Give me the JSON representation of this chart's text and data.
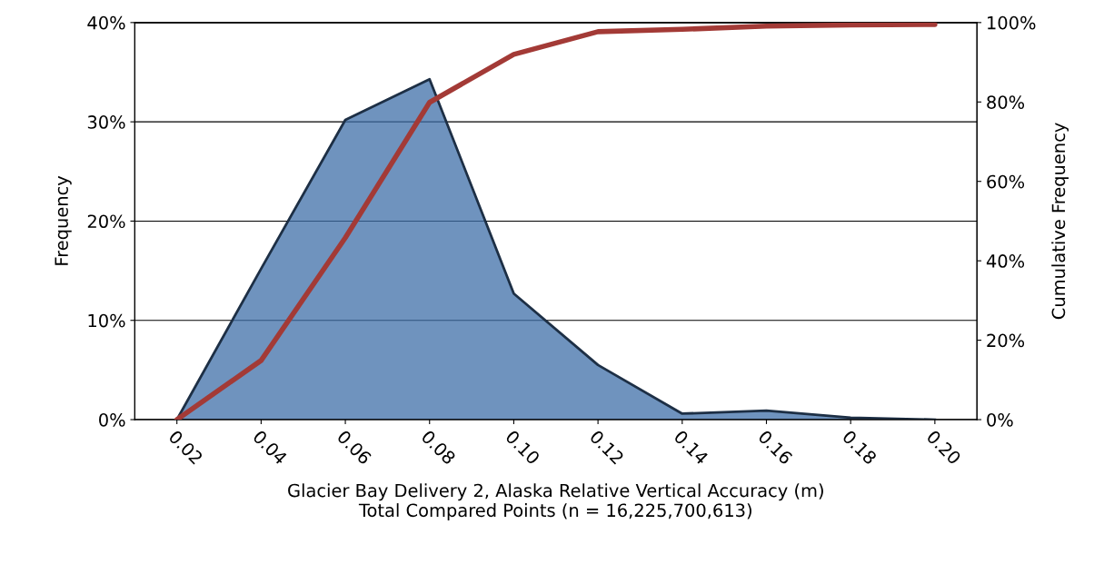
{
  "chart_data": {
    "type": "area",
    "xlabel": "Glacier Bay Delivery 2, Alaska Relative Vertical Accuracy (m)\nTotal Compared Points (n = 16,225,700,613)",
    "ylabel": "Frequency",
    "y2label": "Cumulative Frequency",
    "categories": [
      "0.02",
      "0.04",
      "0.06",
      "0.08",
      "0.10",
      "0.12",
      "0.14",
      "0.16",
      "0.18",
      "0.20"
    ],
    "series": [
      {
        "color": "#3f6fa8",
        "values": [
          0,
          15.2,
          30.2,
          34.3,
          12.7,
          5.5,
          0.6,
          0.9,
          0.2,
          0
        ]
      },
      {
        "type": "line",
        "color": "#a33a36",
        "axis": "y2",
        "values": [
          0,
          14.9,
          45.8,
          79.9,
          92,
          97.7,
          98.3,
          99.1,
          99.4,
          99.5
        ]
      }
    ],
    "ylim": [
      0,
      40
    ],
    "yticks": [
      {
        "value": 0,
        "label": "0%"
      },
      {
        "value": 10,
        "label": "10%"
      },
      {
        "value": 20,
        "label": "20%"
      },
      {
        "value": 30,
        "label": "30%"
      },
      {
        "value": 40,
        "label": "40%"
      }
    ],
    "y2lim": [
      0,
      100
    ],
    "y2ticks": [
      {
        "value": 0,
        "label": "0%"
      },
      {
        "value": 20,
        "label": "20%"
      },
      {
        "value": 40,
        "label": "40%"
      },
      {
        "value": 60,
        "label": "60%"
      },
      {
        "value": 80,
        "label": "80%"
      },
      {
        "value": 100,
        "label": "100%"
      }
    ],
    "grid": "y",
    "marker": "none",
    "line_style": "solid"
  }
}
